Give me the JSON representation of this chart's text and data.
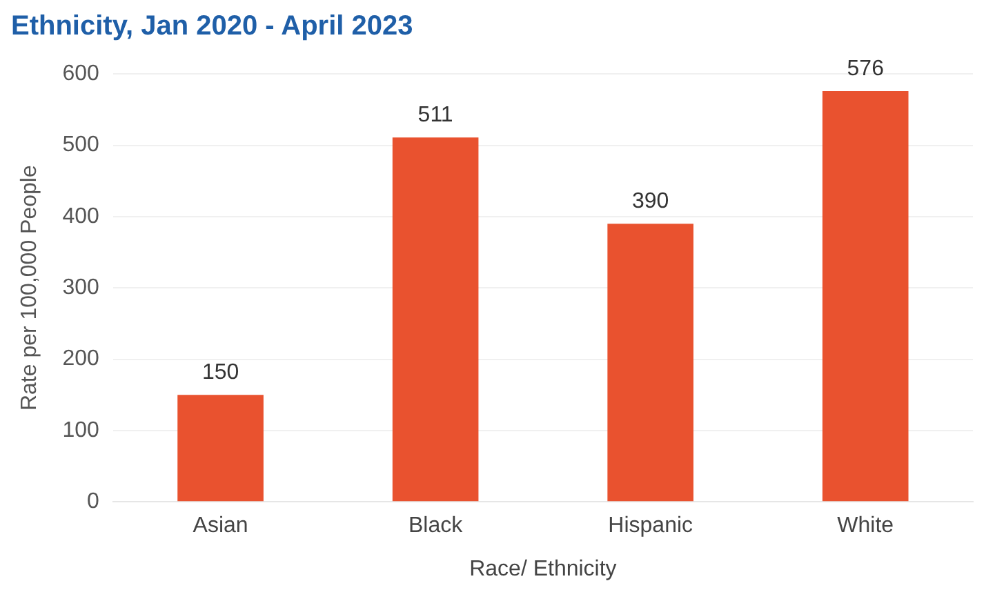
{
  "chart_data": {
    "type": "bar",
    "title": "Ethnicity, Jan 2020 - April 2023",
    "xlabel": "Race/ Ethnicity",
    "ylabel": "Rate per 100,000 People",
    "categories": [
      "Asian",
      "Black",
      "Hispanic",
      "White"
    ],
    "values": [
      150,
      511,
      390,
      576
    ],
    "color": "#e9522f",
    "ylim": [
      0,
      600
    ],
    "yticks": [
      0,
      100,
      200,
      300,
      400,
      500,
      600
    ],
    "grid": "y",
    "data_labels": true,
    "legend": false
  }
}
